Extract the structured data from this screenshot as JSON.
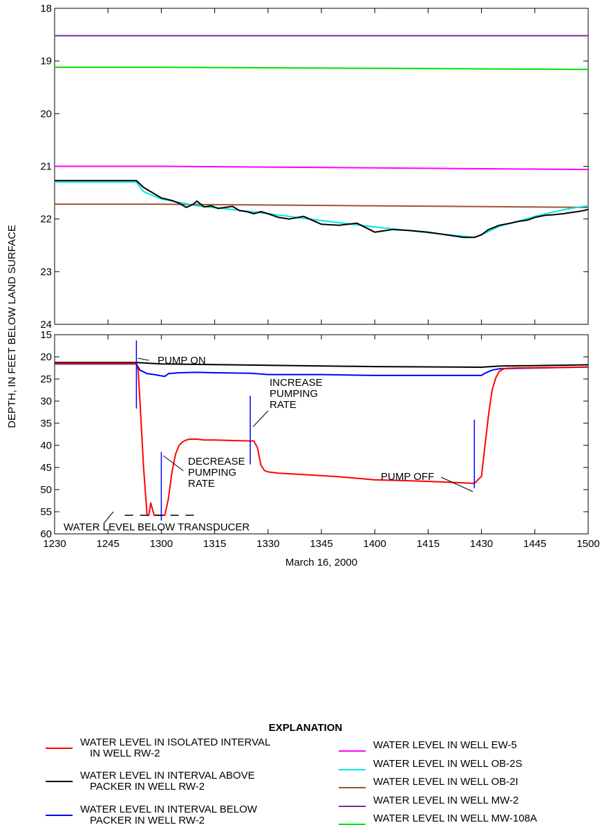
{
  "chart_data": [
    {
      "type": "line",
      "panel": "top",
      "x_unit": "time (hhmm)",
      "xlim": [
        "1230",
        "1500"
      ],
      "ylim": [
        18,
        24
      ],
      "y_inverted": true,
      "y_ticks": [
        "18",
        "19",
        "20",
        "21",
        "22",
        "23",
        "24"
      ],
      "series": [
        {
          "name": "WATER LEVEL IN WELL MW-2",
          "color": "#7030a0",
          "x": [
            "1230",
            "1500"
          ],
          "y": [
            18.52,
            18.52
          ]
        },
        {
          "name": "WATER LEVEL IN WELL MW-108A",
          "color": "#00e000",
          "x": [
            "1230",
            "1300",
            "1400",
            "1500"
          ],
          "y": [
            19.12,
            19.12,
            19.14,
            19.16
          ]
        },
        {
          "name": "WATER LEVEL IN WELL EW-5",
          "color": "#ff00ff",
          "x": [
            "1230",
            "1300",
            "1400",
            "1500"
          ],
          "y": [
            21.0,
            21.0,
            21.03,
            21.06
          ]
        },
        {
          "name": "WATER LEVEL IN WELL OB-2I",
          "color": "#a0522d",
          "x": [
            "1230",
            "1300",
            "1400",
            "1500"
          ],
          "y": [
            21.72,
            21.72,
            21.75,
            21.78
          ]
        },
        {
          "name": "WATER LEVEL IN WELL OB-2S",
          "color": "#00e5e5",
          "x": [
            "1230",
            "1253",
            "1255",
            "1300",
            "1310",
            "1320",
            "1330",
            "1345",
            "1400",
            "1415",
            "1428",
            "1430",
            "1435",
            "1440",
            "1445",
            "1450",
            "1455",
            "1500"
          ],
          "y": [
            21.3,
            21.3,
            21.48,
            21.62,
            21.75,
            21.82,
            21.9,
            22.03,
            22.15,
            22.26,
            22.35,
            22.3,
            22.14,
            22.05,
            21.95,
            21.87,
            21.8,
            21.75
          ]
        },
        {
          "name": "WATER LEVEL IN INTERVAL ABOVE PACKER IN WELL RW-2",
          "color": "#000000",
          "x": [
            "1230",
            "1253",
            "1255",
            "1258",
            "1300",
            "1303",
            "1305",
            "1307",
            "1309",
            "1310",
            "1312",
            "1314",
            "1316",
            "1318",
            "1320",
            "1322",
            "1324",
            "1326",
            "1328",
            "1330",
            "1333",
            "1336",
            "1340",
            "1345",
            "1350",
            "1355",
            "1400",
            "1405",
            "1410",
            "1415",
            "1420",
            "1425",
            "1428",
            "1430",
            "1432",
            "1435",
            "1438",
            "1440",
            "1443",
            "1445",
            "1448",
            "1450",
            "1453",
            "1455",
            "1458",
            "1500"
          ],
          "y": [
            21.27,
            21.27,
            21.4,
            21.52,
            21.6,
            21.65,
            21.7,
            21.78,
            21.72,
            21.66,
            21.77,
            21.75,
            21.8,
            21.78,
            21.76,
            21.84,
            21.86,
            21.9,
            21.86,
            21.9,
            21.97,
            22.0,
            21.95,
            22.1,
            22.12,
            22.08,
            22.25,
            22.2,
            22.22,
            22.25,
            22.3,
            22.35,
            22.35,
            22.3,
            22.2,
            22.12,
            22.08,
            22.05,
            22.02,
            21.97,
            21.93,
            21.92,
            21.9,
            21.88,
            21.85,
            21.82
          ]
        }
      ]
    },
    {
      "type": "line",
      "panel": "bottom",
      "x_unit": "time (hhmm)",
      "xlim": [
        "1230",
        "1500"
      ],
      "ylim": [
        15,
        60
      ],
      "y_inverted": true,
      "y_ticks": [
        "15",
        "20",
        "25",
        "30",
        "35",
        "40",
        "45",
        "50",
        "55",
        "60"
      ],
      "x_ticks": [
        "1230",
        "1245",
        "1300",
        "1315",
        "1330",
        "1345",
        "1400",
        "1415",
        "1430",
        "1445",
        "1500"
      ],
      "xlabel": "March 16, 2000",
      "series": [
        {
          "name": "WATER LEVEL IN INTERVAL ABOVE PACKER IN WELL RW-2",
          "color": "#000000",
          "x": [
            "1230",
            "1253",
            "1300",
            "1330",
            "1400",
            "1430",
            "1435",
            "1500"
          ],
          "y": [
            21.3,
            21.3,
            21.6,
            21.9,
            22.2,
            22.35,
            22.1,
            21.8
          ]
        },
        {
          "name": "WATER LEVEL IN INTERVAL BELOW PACKER IN WELL RW-2",
          "color": "#0000ff",
          "x": [
            "1230",
            "1253",
            "1254",
            "1256",
            "1258",
            "1300",
            "1301",
            "1302",
            "1305",
            "1310",
            "1315",
            "1325",
            "1330",
            "1345",
            "1400",
            "1415",
            "1430",
            "1431",
            "1433",
            "1435",
            "1440",
            "1500"
          ],
          "y": [
            21.6,
            21.6,
            23.0,
            23.8,
            24.0,
            24.3,
            24.4,
            23.8,
            23.6,
            23.5,
            23.6,
            23.7,
            24.0,
            24.0,
            24.2,
            24.2,
            24.2,
            23.7,
            23.0,
            22.7,
            22.6,
            22.3
          ]
        },
        {
          "name": "WATER LEVEL IN ISOLATED INTERVAL IN WELL RW-2",
          "color": "#ff0000",
          "x": [
            "1230",
            "1253",
            "1253.5",
            "1254",
            "1255",
            "1256",
            "1256.5",
            "1257",
            "1258",
            "1259",
            "1300",
            "1301",
            "1302",
            "1303",
            "1304",
            "1305",
            "1306",
            "1307",
            "1308",
            "1310",
            "1312",
            "1315",
            "1320",
            "1325",
            "1326",
            "1327",
            "1328",
            "1329",
            "1330",
            "1333",
            "1340",
            "1350",
            "1400",
            "1410",
            "1420",
            "1428",
            "1430",
            "1431",
            "1432",
            "1433",
            "1434",
            "1435",
            "1436",
            "1437",
            "1440",
            "1450",
            "1500"
          ],
          "y": [
            21.5,
            21.5,
            23.0,
            30.0,
            45.0,
            55.8,
            55.8,
            53.0,
            55.8,
            55.8,
            55.8,
            55.8,
            52.0,
            46.0,
            42.0,
            40.0,
            39.2,
            38.8,
            38.6,
            38.6,
            38.8,
            38.8,
            38.9,
            39.0,
            39.0,
            40.5,
            44.5,
            45.7,
            46.0,
            46.3,
            46.6,
            47.1,
            47.8,
            48.0,
            48.3,
            48.6,
            47.0,
            40.0,
            33.0,
            27.5,
            24.8,
            23.3,
            22.8,
            22.6,
            22.5,
            22.4,
            22.3
          ]
        }
      ],
      "markers": [
        {
          "label": "PUMP ON",
          "x": "1253",
          "y_top": 16.3,
          "y_bottom": 31.7
        },
        {
          "label": "DECREASE PUMPING RATE",
          "x": "1300",
          "y_top": 41.5,
          "y_bottom": 57.0
        },
        {
          "label": "INCREASE PUMPING RATE",
          "x": "1325",
          "y_top": 28.8,
          "y_bottom": 44.3
        },
        {
          "label": "PUMP OFF",
          "x": "1428",
          "y_top": 34.2,
          "y_bottom": 49.7
        }
      ],
      "transducer_limit": {
        "label": "WATER LEVEL BELOW TRANSDUCER",
        "y": 55.8,
        "x_from": "1254",
        "x_to": "1306"
      }
    }
  ],
  "annotations": {
    "pump_on": [
      "PUMP ON"
    ],
    "decrease": [
      "DECREASE",
      "PUMPING",
      "RATE"
    ],
    "increase": [
      "INCREASE",
      "PUMPING",
      "RATE"
    ],
    "pump_off": [
      "PUMP OFF"
    ],
    "transducer": [
      "WATER LEVEL BELOW TRANSDUCER"
    ]
  },
  "shared_ylabel": "DEPTH, IN FEET BELOW LAND SURFACE",
  "legend": {
    "title": "EXPLANATION",
    "left": [
      {
        "color": "#ff0000",
        "lines": [
          "WATER LEVEL IN ISOLATED INTERVAL",
          "IN WELL RW-2"
        ]
      },
      {
        "color": "#000000",
        "lines": [
          "WATER LEVEL IN INTERVAL ABOVE",
          "PACKER IN WELL RW-2"
        ]
      },
      {
        "color": "#0000ff",
        "lines": [
          "WATER LEVEL IN INTERVAL BELOW",
          "PACKER IN WELL RW-2"
        ]
      }
    ],
    "right": [
      {
        "color": "#ff00ff",
        "lines": [
          "WATER LEVEL IN WELL EW-5"
        ]
      },
      {
        "color": "#00e5e5",
        "lines": [
          "WATER LEVEL IN WELL OB-2S"
        ]
      },
      {
        "color": "#a0522d",
        "lines": [
          "WATER LEVEL IN WELL OB-2I"
        ]
      },
      {
        "color": "#7030a0",
        "lines": [
          "WATER LEVEL IN WELL MW-2"
        ]
      },
      {
        "color": "#00e000",
        "lines": [
          "WATER LEVEL IN WELL MW-108A"
        ]
      }
    ]
  }
}
